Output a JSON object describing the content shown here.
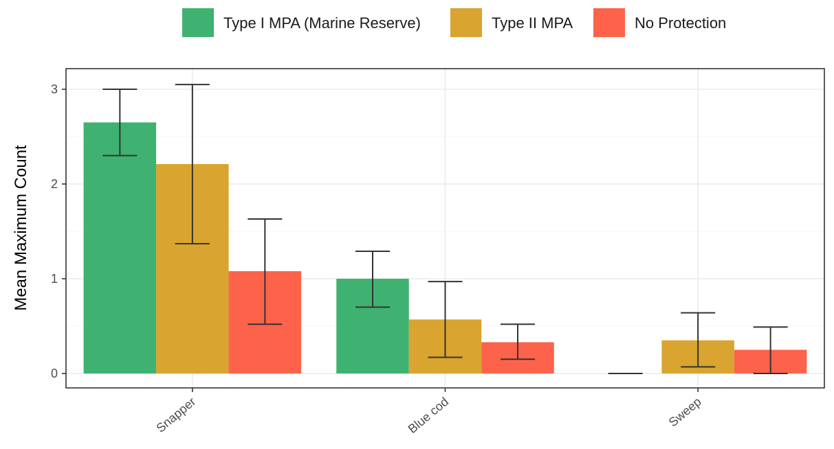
{
  "chart_data": {
    "type": "bar",
    "title": "",
    "xlabel": "",
    "ylabel": "Mean Maximum Count",
    "ylim": [
      -0.15,
      3.2
    ],
    "yticks": [
      0,
      1,
      2,
      3
    ],
    "grid": true,
    "legend_position": "top",
    "categories": [
      "Snapper",
      "Blue cod",
      "Sweep"
    ],
    "series": [
      {
        "name": "Type I MPA (Marine Reserve)",
        "color": "#3fb271",
        "values": [
          2.65,
          1.0,
          0.0
        ],
        "err_low": [
          2.3,
          0.7,
          0.0
        ],
        "err_high": [
          3.0,
          1.29,
          0.0
        ]
      },
      {
        "name": "Type II MPA",
        "color": "#d9a42f",
        "values": [
          2.21,
          0.57,
          0.35
        ],
        "err_low": [
          1.37,
          0.17,
          0.07
        ],
        "err_high": [
          3.05,
          0.97,
          0.64
        ]
      },
      {
        "name": "No Protection",
        "color": "#fd624b",
        "values": [
          1.08,
          0.33,
          0.25
        ],
        "err_low": [
          0.52,
          0.15,
          0.0
        ],
        "err_high": [
          1.63,
          0.52,
          0.49
        ]
      }
    ]
  }
}
